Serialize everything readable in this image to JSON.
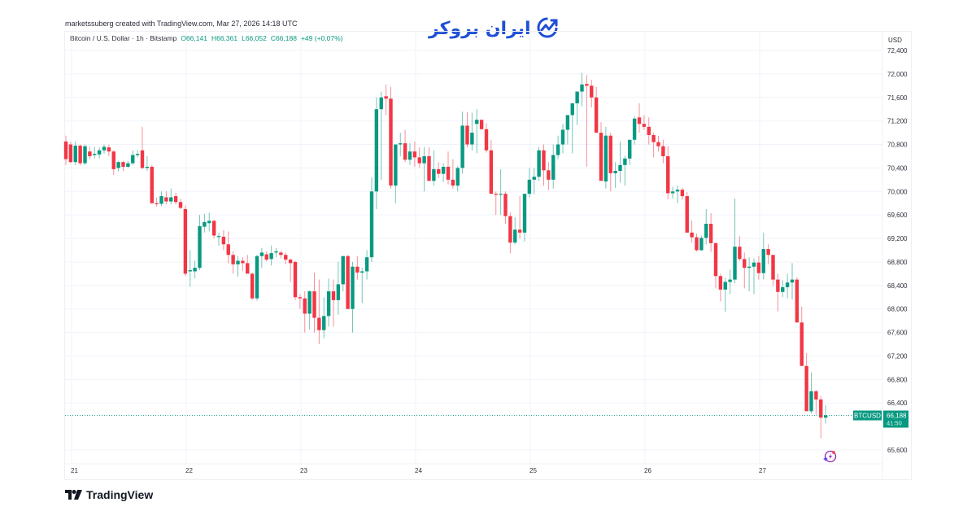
{
  "header": {
    "credit": "marketssuberg created with TradingView.com, Mar 27, 2026 14:18 UTC",
    "brand_name": "ایران بروکر",
    "brand_color": "#1f4fd6"
  },
  "legend": {
    "symbol": "Bitcoin / U.S. Dollar · 1h · Bitstamp",
    "open": "O66,141",
    "high": "H66,361",
    "low": "L66,052",
    "close": "C66,188",
    "change": "+49 (+0.07%)"
  },
  "price_axis": {
    "currency": "USD",
    "ticks": [
      "72,400",
      "72,000",
      "71,600",
      "71,200",
      "70,800",
      "70,400",
      "70,000",
      "69,600",
      "69,200",
      "68,800",
      "68,400",
      "68,000",
      "67,600",
      "67,200",
      "66,800",
      "66,400",
      "65,600"
    ]
  },
  "time_axis": {
    "ticks": [
      "21",
      "22",
      "23",
      "24",
      "25",
      "26",
      "27"
    ]
  },
  "last_price": {
    "symbol_label": "BTCUSD",
    "price": "66,188",
    "countdown": "41:50",
    "color": "#089981"
  },
  "footer": {
    "logo_text": "TradingView"
  },
  "colors": {
    "up": "#089981",
    "down": "#f23645",
    "grid": "#f0f3fa",
    "axis_text": "#2a2e39"
  },
  "chart_data": {
    "type": "candlestick",
    "title": "Bitcoin / U.S. Dollar · 1h · Bitstamp",
    "xlabel": "",
    "ylabel": "USD",
    "ylim": [
      65400,
      72600
    ],
    "x_ticks": [
      "21",
      "22",
      "23",
      "24",
      "25",
      "26",
      "27"
    ],
    "grid": true,
    "series": [
      {
        "name": "BTCUSD 1h",
        "ohlc": [
          [
            70850,
            70950,
            70450,
            70550
          ],
          [
            70800,
            70850,
            70480,
            70500
          ],
          [
            70500,
            70850,
            70450,
            70780
          ],
          [
            70780,
            70800,
            70450,
            70480
          ],
          [
            70480,
            70800,
            70450,
            70770
          ],
          [
            70680,
            70760,
            70550,
            70600
          ],
          [
            70620,
            70760,
            70560,
            70640
          ],
          [
            70630,
            70750,
            70560,
            70700
          ],
          [
            70700,
            70800,
            70640,
            70760
          ],
          [
            70750,
            70800,
            70600,
            70680
          ],
          [
            70680,
            70700,
            70280,
            70380
          ],
          [
            70400,
            70520,
            70340,
            70500
          ],
          [
            70500,
            70520,
            70350,
            70420
          ],
          [
            70420,
            70520,
            70400,
            70480
          ],
          [
            70480,
            70700,
            70450,
            70620
          ],
          [
            70620,
            70700,
            70580,
            70640
          ],
          [
            70700,
            71100,
            70380,
            70400
          ],
          [
            70400,
            70600,
            70350,
            70420
          ],
          [
            70420,
            70450,
            69790,
            69800
          ],
          [
            69800,
            69900,
            69740,
            69790
          ],
          [
            69790,
            70000,
            69750,
            69920
          ],
          [
            69900,
            70000,
            69780,
            69830
          ],
          [
            69830,
            70050,
            69780,
            69900
          ],
          [
            69920,
            69980,
            69780,
            69820
          ],
          [
            69820,
            69880,
            69700,
            69720
          ],
          [
            69700,
            69760,
            68560,
            68600
          ],
          [
            68640,
            69000,
            68380,
            68660
          ],
          [
            68640,
            68820,
            68520,
            68700
          ],
          [
            68700,
            69600,
            68660,
            69410
          ],
          [
            69400,
            69620,
            69300,
            69480
          ],
          [
            69460,
            69640,
            69320,
            69500
          ],
          [
            69500,
            69520,
            69200,
            69250
          ],
          [
            69240,
            69300,
            69080,
            69240
          ],
          [
            69230,
            69340,
            69000,
            69100
          ],
          [
            69100,
            69320,
            68780,
            68920
          ],
          [
            68920,
            68980,
            68600,
            68760
          ],
          [
            68760,
            68900,
            68550,
            68820
          ],
          [
            68820,
            68880,
            68650,
            68780
          ],
          [
            68780,
            68920,
            68620,
            68600
          ],
          [
            68600,
            68620,
            68150,
            68180
          ],
          [
            68180,
            68920,
            68140,
            68900
          ],
          [
            68900,
            69040,
            68700,
            68960
          ],
          [
            68930,
            68980,
            68810,
            68840
          ],
          [
            68850,
            69080,
            68740,
            68950
          ],
          [
            68960,
            69040,
            68880,
            68980
          ],
          [
            68960,
            68990,
            68860,
            68920
          ],
          [
            68920,
            68960,
            68760,
            68840
          ],
          [
            68840,
            68860,
            68460,
            68780
          ],
          [
            68800,
            68820,
            68150,
            68200
          ],
          [
            68200,
            68250,
            68000,
            68180
          ],
          [
            68180,
            68300,
            67600,
            67920
          ],
          [
            67920,
            68320,
            67650,
            68300
          ],
          [
            68300,
            68620,
            67600,
            67850
          ],
          [
            67850,
            68500,
            67400,
            67640
          ],
          [
            67640,
            68200,
            67500,
            67880
          ],
          [
            67880,
            68520,
            67700,
            68300
          ],
          [
            68300,
            68500,
            67700,
            68150
          ],
          [
            68150,
            68800,
            67900,
            68420
          ],
          [
            68420,
            68900,
            68300,
            68900
          ],
          [
            68900,
            68920,
            68000,
            68000
          ],
          [
            68000,
            68800,
            67600,
            68720
          ],
          [
            68720,
            68900,
            68500,
            68620
          ],
          [
            68620,
            68700,
            68100,
            68640
          ],
          [
            68640,
            69000,
            68500,
            68880
          ],
          [
            68880,
            70240,
            68800,
            70000
          ],
          [
            70000,
            71600,
            69700,
            71400
          ],
          [
            71400,
            71700,
            70200,
            71600
          ],
          [
            71620,
            71820,
            71300,
            71580
          ],
          [
            71580,
            71780,
            70050,
            70100
          ],
          [
            70100,
            70800,
            69800,
            70800
          ],
          [
            70800,
            71000,
            70600,
            70820
          ],
          [
            70820,
            71050,
            70500,
            70540
          ],
          [
            70540,
            70820,
            70450,
            70680
          ],
          [
            70680,
            70850,
            70420,
            70580
          ],
          [
            70580,
            70750,
            70400,
            70480
          ],
          [
            70480,
            70760,
            70000,
            70600
          ],
          [
            70600,
            70750,
            70360,
            70180
          ],
          [
            70180,
            70700,
            70100,
            70380
          ],
          [
            70380,
            70500,
            70230,
            70300
          ],
          [
            70300,
            70480,
            70160,
            70420
          ],
          [
            70420,
            70680,
            70120,
            70200
          ],
          [
            70200,
            70550,
            70050,
            70100
          ],
          [
            70100,
            70430,
            70000,
            70400
          ],
          [
            70400,
            71360,
            70300,
            71120
          ],
          [
            71120,
            71350,
            70750,
            70800
          ],
          [
            70800,
            71340,
            70700,
            71000
          ],
          [
            71150,
            71400,
            70650,
            71220
          ],
          [
            71220,
            71220,
            71050,
            71060
          ],
          [
            71060,
            71160,
            70660,
            70700
          ],
          [
            70700,
            70880,
            70200,
            69960
          ],
          [
            69960,
            70000,
            69600,
            69950
          ],
          [
            69950,
            70380,
            69600,
            69960
          ],
          [
            69960,
            70000,
            69450,
            69580
          ],
          [
            69580,
            69640,
            68950,
            69130
          ],
          [
            69130,
            69560,
            69100,
            69350
          ],
          [
            69350,
            69920,
            69200,
            69300
          ],
          [
            69300,
            69700,
            69150,
            69960
          ],
          [
            69960,
            70400,
            69900,
            70200
          ],
          [
            70200,
            70400,
            69950,
            70250
          ],
          [
            70250,
            70760,
            70180,
            70700
          ],
          [
            70700,
            70800,
            70100,
            70360
          ],
          [
            70360,
            70500,
            70020,
            70200
          ],
          [
            70200,
            70800,
            70050,
            70620
          ],
          [
            70620,
            70950,
            70550,
            70800
          ],
          [
            70800,
            71150,
            70650,
            71050
          ],
          [
            71050,
            71300,
            70800,
            71300
          ],
          [
            71300,
            71420,
            70650,
            71500
          ],
          [
            71500,
            71580,
            71130,
            71700
          ],
          [
            71700,
            72020,
            71450,
            71820
          ],
          [
            71830,
            71980,
            70420,
            71800
          ],
          [
            71800,
            71900,
            71430,
            71600
          ],
          [
            71600,
            71780,
            71000,
            71000
          ],
          [
            71000,
            71180,
            70280,
            70180
          ],
          [
            70170,
            71100,
            70050,
            70950
          ],
          [
            70950,
            71000,
            70000,
            70310
          ],
          [
            70310,
            70500,
            70060,
            70350
          ],
          [
            70350,
            70850,
            70150,
            70450
          ],
          [
            70450,
            70610,
            70100,
            70560
          ],
          [
            70560,
            70800,
            70450,
            70880
          ],
          [
            70880,
            71280,
            70800,
            71240
          ],
          [
            71260,
            71500,
            71000,
            71150
          ],
          [
            71150,
            71300,
            71050,
            71100
          ],
          [
            71100,
            71260,
            70800,
            70960
          ],
          [
            70960,
            71000,
            70580,
            70840
          ],
          [
            70840,
            70950,
            70680,
            70770
          ],
          [
            70770,
            70880,
            70480,
            70600
          ],
          [
            70600,
            70770,
            69870,
            69970
          ],
          [
            69970,
            70080,
            69880,
            70000
          ],
          [
            70000,
            70100,
            69800,
            70030
          ],
          [
            70030,
            70060,
            69860,
            69920
          ],
          [
            69920,
            69990,
            69300,
            69300
          ],
          [
            69300,
            69500,
            69130,
            69220
          ],
          [
            69220,
            69280,
            68980,
            69000
          ],
          [
            69000,
            69250,
            68990,
            69210
          ],
          [
            69210,
            69700,
            69100,
            69450
          ],
          [
            69450,
            69630,
            68970,
            69120
          ],
          [
            69120,
            69130,
            68350,
            68560
          ],
          [
            68560,
            68600,
            68130,
            68330
          ],
          [
            68330,
            68530,
            67950,
            68460
          ],
          [
            68460,
            68670,
            68250,
            68500
          ],
          [
            68500,
            69880,
            68440,
            69060
          ],
          [
            69060,
            69240,
            68820,
            68850
          ],
          [
            68850,
            68960,
            68350,
            68700
          ],
          [
            68700,
            68880,
            68300,
            68720
          ],
          [
            68720,
            68860,
            68250,
            68790
          ],
          [
            68790,
            68900,
            68500,
            68610
          ],
          [
            68610,
            69300,
            68500,
            69020
          ],
          [
            69020,
            69100,
            68760,
            68920
          ],
          [
            68920,
            68920,
            68390,
            68500
          ],
          [
            68500,
            68600,
            67960,
            68290
          ],
          [
            68290,
            68490,
            68200,
            68370
          ],
          [
            68370,
            68600,
            68180,
            68450
          ],
          [
            68450,
            68780,
            68160,
            68500
          ],
          [
            68500,
            68540,
            68100,
            67770
          ],
          [
            67770,
            68040,
            67300,
            67030
          ],
          [
            67030,
            67250,
            66490,
            66260
          ],
          [
            66260,
            66920,
            66220,
            66600
          ],
          [
            66600,
            66620,
            66200,
            66460
          ],
          [
            66460,
            66520,
            65800,
            66150
          ],
          [
            66150,
            66360,
            66050,
            66190
          ]
        ],
        "last": {
          "open": 66141,
          "high": 66361,
          "low": 66052,
          "close": 66188
        }
      }
    ]
  }
}
